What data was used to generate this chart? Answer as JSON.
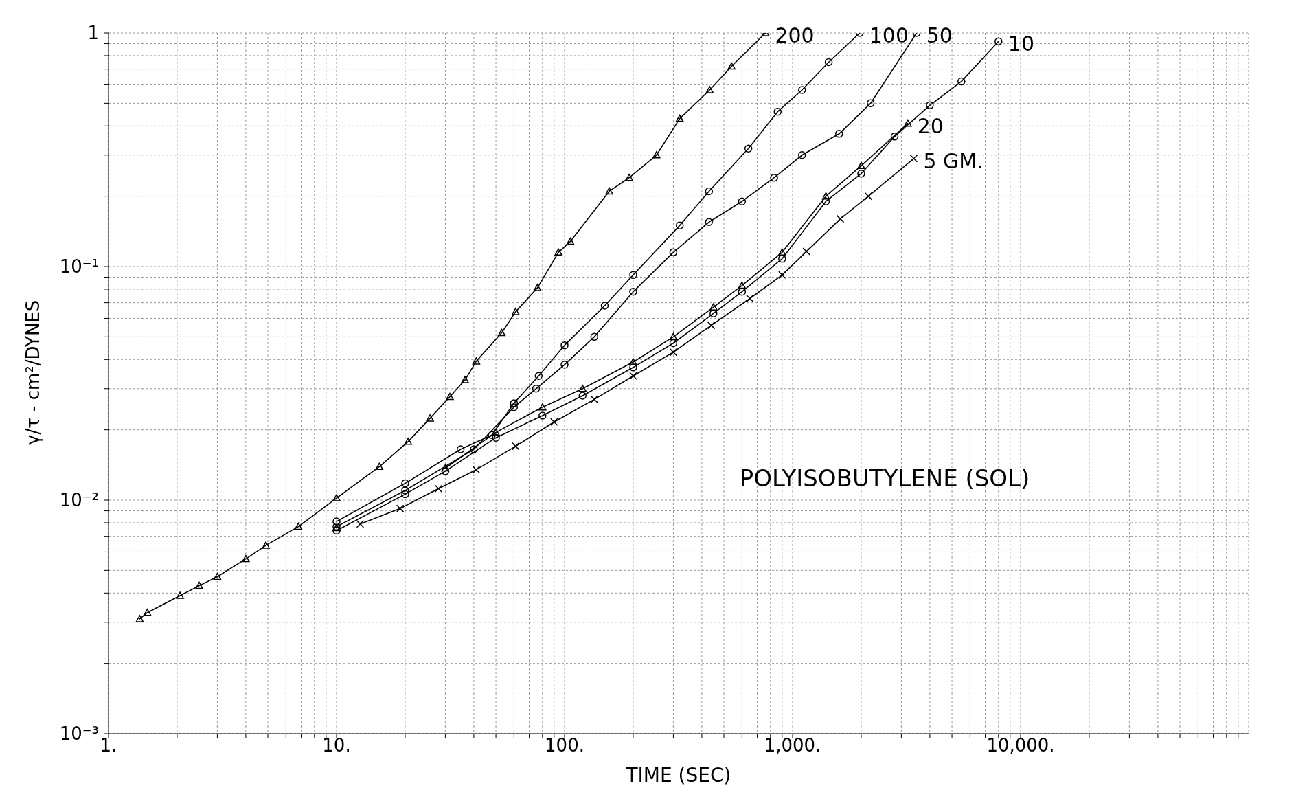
{
  "chart_data": {
    "type": "line",
    "title": "POLYISOBUTYLENE (SOL)",
    "xlabel": "TIME (SEC)",
    "ylabel": "γ/τ - cm²/DYNES",
    "log": "xy",
    "grid": true,
    "line_style": "solid",
    "xlim": [
      1,
      100000
    ],
    "ylim": [
      0.001,
      1
    ],
    "xticks": [
      {
        "value": 1,
        "label": "1."
      },
      {
        "value": 2,
        "label": null
      },
      {
        "value": 3,
        "label": null
      },
      {
        "value": 4,
        "label": null
      },
      {
        "value": 5,
        "label": null
      },
      {
        "value": 6,
        "label": null
      },
      {
        "value": 7,
        "label": null
      },
      {
        "value": 8,
        "label": null
      },
      {
        "value": 9,
        "label": null
      },
      {
        "value": 10,
        "label": "10."
      },
      {
        "value": 20,
        "label": null
      },
      {
        "value": 30,
        "label": null
      },
      {
        "value": 40,
        "label": null
      },
      {
        "value": 50,
        "label": null
      },
      {
        "value": 60,
        "label": null
      },
      {
        "value": 70,
        "label": null
      },
      {
        "value": 80,
        "label": null
      },
      {
        "value": 90,
        "label": null
      },
      {
        "value": 100,
        "label": "100."
      },
      {
        "value": 200,
        "label": null
      },
      {
        "value": 300,
        "label": null
      },
      {
        "value": 400,
        "label": null
      },
      {
        "value": 500,
        "label": null
      },
      {
        "value": 600,
        "label": null
      },
      {
        "value": 700,
        "label": null
      },
      {
        "value": 800,
        "label": null
      },
      {
        "value": 900,
        "label": null
      },
      {
        "value": 1000,
        "label": "1,000."
      },
      {
        "value": 2000,
        "label": null
      },
      {
        "value": 3000,
        "label": null
      },
      {
        "value": 4000,
        "label": null
      },
      {
        "value": 5000,
        "label": null
      },
      {
        "value": 6000,
        "label": null
      },
      {
        "value": 7000,
        "label": null
      },
      {
        "value": 8000,
        "label": null
      },
      {
        "value": 9000,
        "label": null
      },
      {
        "value": 10000,
        "label": "10,000."
      },
      {
        "value": 20000,
        "label": null
      },
      {
        "value": 30000,
        "label": null
      },
      {
        "value": 40000,
        "label": null
      },
      {
        "value": 50000,
        "label": null
      },
      {
        "value": 60000,
        "label": null
      },
      {
        "value": 70000,
        "label": null
      },
      {
        "value": 80000,
        "label": null
      },
      {
        "value": 90000,
        "label": null
      }
    ],
    "yticks": [
      {
        "value": 0.001,
        "label": "10⁻³"
      },
      {
        "value": 0.002,
        "label": null
      },
      {
        "value": 0.003,
        "label": null
      },
      {
        "value": 0.004,
        "label": null
      },
      {
        "value": 0.005,
        "label": null
      },
      {
        "value": 0.006,
        "label": null
      },
      {
        "value": 0.007,
        "label": null
      },
      {
        "value": 0.008,
        "label": null
      },
      {
        "value": 0.009,
        "label": null
      },
      {
        "value": 0.01,
        "label": "10⁻²"
      },
      {
        "value": 0.02,
        "label": null
      },
      {
        "value": 0.03,
        "label": null
      },
      {
        "value": 0.04,
        "label": null
      },
      {
        "value": 0.05,
        "label": null
      },
      {
        "value": 0.06,
        "label": null
      },
      {
        "value": 0.07,
        "label": null
      },
      {
        "value": 0.08,
        "label": null
      },
      {
        "value": 0.09,
        "label": null
      },
      {
        "value": 0.1,
        "label": "10⁻¹"
      },
      {
        "value": 0.2,
        "label": null
      },
      {
        "value": 0.3,
        "label": null
      },
      {
        "value": 0.4,
        "label": null
      },
      {
        "value": 0.5,
        "label": null
      },
      {
        "value": 0.6,
        "label": null
      },
      {
        "value": 0.7,
        "label": null
      },
      {
        "value": 0.8,
        "label": null
      },
      {
        "value": 0.9,
        "label": null
      },
      {
        "value": 1,
        "label": "1"
      }
    ],
    "series": [
      {
        "name": "200",
        "color": "#000000",
        "marker": "triangle",
        "x": [
          1.37,
          1.48,
          2.06,
          2.5,
          3.0,
          4.0,
          4.9,
          6.8,
          10,
          15.4,
          20.6,
          25.7,
          31.4,
          36.6,
          41,
          53,
          61,
          76,
          94,
          106,
          157,
          192,
          253,
          320,
          433,
          540,
          760
        ],
        "values": [
          0.0031,
          0.0033,
          0.0039,
          0.0043,
          0.0047,
          0.0056,
          0.0064,
          0.0077,
          0.0102,
          0.0139,
          0.0178,
          0.0224,
          0.0277,
          0.0327,
          0.0393,
          0.052,
          0.064,
          0.081,
          0.115,
          0.128,
          0.21,
          0.24,
          0.3,
          0.43,
          0.57,
          0.72,
          1.0
        ]
      },
      {
        "name": "100",
        "color": "#000000",
        "marker": "circle",
        "x": [
          10,
          20,
          35,
          48,
          60,
          77,
          100,
          150,
          200,
          320,
          430,
          640,
          860,
          1100,
          1440,
          1970
        ],
        "values": [
          0.0081,
          0.0118,
          0.0165,
          0.019,
          0.026,
          0.034,
          0.046,
          0.068,
          0.092,
          0.15,
          0.21,
          0.32,
          0.46,
          0.57,
          0.75,
          1.0
        ]
      },
      {
        "name": "50",
        "color": "#000000",
        "marker": "circle",
        "x": [
          10,
          20,
          40,
          60,
          75,
          100,
          135,
          200,
          300,
          430,
          600,
          830,
          1100,
          1600,
          2200,
          3500
        ],
        "values": [
          0.0077,
          0.011,
          0.0165,
          0.025,
          0.03,
          0.038,
          0.05,
          0.078,
          0.115,
          0.155,
          0.19,
          0.24,
          0.3,
          0.37,
          0.5,
          1.0
        ]
      },
      {
        "name": "20",
        "color": "#000000",
        "marker": "triangle",
        "x": [
          10,
          20,
          30,
          50,
          80,
          120,
          200,
          300,
          450,
          600,
          900,
          1400,
          2000,
          3200
        ],
        "values": [
          0.0076,
          null,
          0.0137,
          0.0195,
          0.025,
          0.03,
          0.039,
          0.05,
          0.067,
          0.083,
          0.115,
          0.2,
          0.27,
          0.41
        ]
      },
      {
        "name": "10",
        "color": "#000000",
        "marker": "circle",
        "x": [
          10,
          20,
          30,
          50,
          80,
          120,
          200,
          300,
          450,
          600,
          900,
          1400,
          2000,
          2800,
          4000,
          5500,
          8000
        ],
        "values": [
          0.0074,
          0.0106,
          0.0133,
          0.0185,
          0.023,
          0.028,
          0.037,
          0.047,
          0.063,
          0.078,
          0.108,
          0.19,
          0.25,
          0.36,
          0.49,
          0.62,
          0.92
        ]
      },
      {
        "name": "5 GM.",
        "color": "#000000",
        "marker": "cross",
        "x": [
          12.7,
          19,
          28,
          41,
          61,
          90,
          135,
          200,
          300,
          440,
          650,
          900,
          1150,
          1620,
          2150,
          3400
        ],
        "values": [
          0.0079,
          0.0092,
          0.0112,
          0.0135,
          0.017,
          0.0216,
          0.027,
          0.034,
          0.043,
          0.056,
          0.073,
          0.092,
          0.116,
          0.16,
          0.2,
          0.29
        ]
      }
    ]
  }
}
